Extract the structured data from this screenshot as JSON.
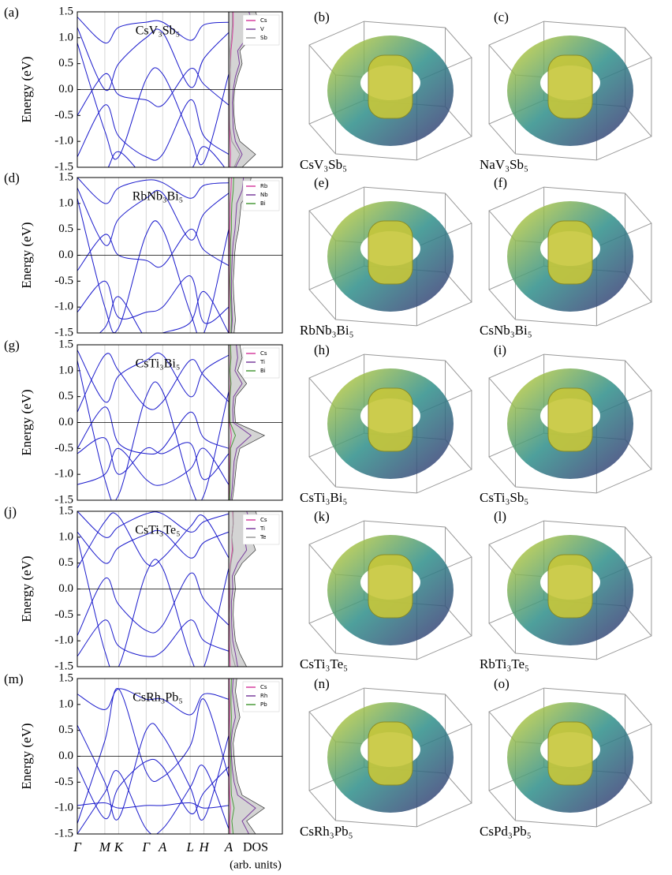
{
  "chart_data": [
    {
      "type": "line",
      "panel": "(a)",
      "compound": "CsV₃Sb₅",
      "y_label": "Energy (eV)",
      "xlim": [
        0,
        5.5
      ],
      "xticks": [
        0,
        1,
        1.5,
        2.5,
        3.1,
        4.1,
        4.6,
        5.5
      ],
      "ylim": [
        -1.5,
        1.5
      ],
      "yticks": [
        -1.5,
        {
          "value": -1.0,
          "label": "-1.0"
        },
        -0.5,
        {
          "value": 0.0,
          "label": "0.0"
        },
        0.5,
        {
          "value": 1.0,
          "label": "1.0"
        },
        1.5
      ],
      "band_color": "#1a1acc",
      "x": [
        0,
        1,
        1.5,
        2.5,
        3.1,
        4.1,
        4.6,
        5.5
      ],
      "bands": [
        [
          -1.3,
          -0.3,
          -0.9,
          -1.3,
          -1.25,
          -0.2,
          -0.9,
          -1.25
        ],
        [
          -0.5,
          0.3,
          -0.1,
          -0.2,
          -0.3,
          0.4,
          0.1,
          -0.3
        ],
        [
          0.9,
          -0.8,
          -1.3,
          0.2,
          0.3,
          -0.9,
          -1.4,
          0.3
        ],
        [
          1.2,
          0.0,
          0.5,
          1.0,
          1.1,
          0.05,
          0.6,
          1.1
        ],
        [
          1.4,
          0.9,
          1.2,
          1.3,
          1.3,
          0.95,
          1.25,
          1.3
        ],
        [
          -2.0,
          -1.6,
          -1.2,
          -1.7,
          -1.6,
          -1.55,
          -1.1,
          -1.6
        ]
      ],
      "energies": [
        -1.5,
        -1.25,
        -1.0,
        -0.75,
        -0.5,
        -0.25,
        0.0,
        0.25,
        0.5,
        0.75,
        1.0,
        1.25,
        1.5
      ],
      "dos_xlim": [
        0,
        12
      ],
      "dos_total": [
        3,
        6,
        2.5,
        1.5,
        1.2,
        1.1,
        1.3,
        2,
        3,
        2.5,
        5,
        7,
        6
      ],
      "legend": "upper right",
      "dos_series": [
        {
          "name": "Cs",
          "color": "#d6409f",
          "values": [
            0.3,
            0.4,
            0.3,
            0.2,
            0.2,
            0.2,
            0.2,
            0.3,
            0.4,
            0.5,
            0.8,
            1,
            1
          ]
        },
        {
          "name": "V",
          "color": "#7b3f9e",
          "values": [
            1.5,
            3,
            1.5,
            1,
            0.9,
            0.8,
            1,
            1.5,
            2.4,
            2,
            4,
            5.5,
            4.5
          ]
        },
        {
          "name": "Sb",
          "color": "#9a9a9a",
          "values": [
            1.2,
            2.5,
            0.7,
            0.3,
            0.2,
            0.2,
            0.2,
            0.3,
            0.4,
            0.3,
            0.6,
            0.8,
            0.8
          ]
        }
      ]
    },
    {
      "type": "line",
      "panel": "(d)",
      "compound": "RbNb₃Bi₅",
      "y_label": "Energy (eV)",
      "xlim": [
        0,
        5.5
      ],
      "xticks": [
        0,
        1,
        1.5,
        2.5,
        3.1,
        4.1,
        4.6,
        5.5
      ],
      "ylim": [
        -1.5,
        1.5
      ],
      "yticks": [
        -1.5,
        {
          "value": -1.0,
          "label": "-1.0"
        },
        -0.5,
        {
          "value": 0.0,
          "label": "0.0"
        },
        0.5,
        {
          "value": 1.0,
          "label": "1.0"
        },
        1.5
      ],
      "band_color": "#1a1acc",
      "x": [
        0,
        1,
        1.5,
        2.5,
        3.1,
        4.1,
        4.6,
        5.5
      ],
      "bands": [
        [
          -1.1,
          -0.5,
          -1.2,
          -1.1,
          -1.0,
          -0.4,
          -1.3,
          -1.0
        ],
        [
          -0.3,
          0.4,
          0.0,
          -0.1,
          -0.2,
          0.5,
          0.1,
          -0.2
        ],
        [
          1.1,
          -1.0,
          -1.4,
          0.4,
          0.5,
          -1.1,
          -1.5,
          0.5
        ],
        [
          1.3,
          0.2,
          0.7,
          1.1,
          1.2,
          0.3,
          0.8,
          1.2
        ],
        [
          1.5,
          1.0,
          1.3,
          1.45,
          1.4,
          1.1,
          1.35,
          1.4
        ],
        [
          -1.8,
          -1.4,
          -0.8,
          -1.6,
          -1.5,
          -1.3,
          -0.7,
          -1.5
        ]
      ],
      "energies": [
        -1.5,
        -1.25,
        -1.0,
        -0.75,
        -0.5,
        -0.25,
        0.0,
        0.25,
        0.5,
        0.75,
        1.0,
        1.25,
        1.5
      ],
      "dos_xlim": [
        0,
        12
      ],
      "dos_total": [
        1.2,
        1.5,
        1.3,
        1.1,
        1,
        1.2,
        1.3,
        1.6,
        2.2,
        2.5,
        2.8,
        4.5,
        5
      ],
      "legend": "upper right",
      "dos_series": [
        {
          "name": "Rb",
          "color": "#d6409f",
          "values": [
            0.1,
            0.1,
            0.1,
            0.1,
            0.1,
            0.1,
            0.1,
            0.2,
            0.2,
            0.3,
            0.3,
            0.5,
            0.6
          ]
        },
        {
          "name": "Nb",
          "color": "#7b3f9e",
          "values": [
            0.6,
            0.8,
            0.7,
            0.6,
            0.6,
            0.7,
            0.8,
            1,
            1.4,
            1.6,
            1.8,
            3,
            3.3
          ]
        },
        {
          "name": "Bi",
          "color": "#4a9a3a",
          "values": [
            0.5,
            0.6,
            0.5,
            0.4,
            0.3,
            0.4,
            0.4,
            0.4,
            0.6,
            0.6,
            0.7,
            1,
            1.1
          ]
        }
      ]
    },
    {
      "type": "line",
      "panel": "(g)",
      "compound": "CsTi₃Bi₅",
      "y_label": "Energy (eV)",
      "xlim": [
        0,
        5.5
      ],
      "xticks": [
        0,
        1,
        1.5,
        2.5,
        3.1,
        4.1,
        4.6,
        5.5
      ],
      "ylim": [
        -1.5,
        1.5
      ],
      "yticks": [
        -1.5,
        {
          "value": -1.0,
          "label": "-1.0"
        },
        -0.5,
        {
          "value": 0.0,
          "label": "0.0"
        },
        0.5,
        {
          "value": 1.0,
          "label": "1.0"
        },
        1.5
      ],
      "band_color": "#1a1acc",
      "x": [
        0,
        1,
        1.5,
        2.5,
        3.1,
        4.1,
        4.6,
        5.5
      ],
      "bands": [
        [
          -0.6,
          -0.3,
          -1.0,
          -0.5,
          -0.6,
          -0.4,
          -1.1,
          -0.6
        ],
        [
          -0.5,
          0.3,
          -0.4,
          -0.6,
          -0.5,
          0.2,
          -0.3,
          -0.5
        ],
        [
          1.2,
          -1.1,
          -1.4,
          0.5,
          0.6,
          -1.2,
          -1.4,
          0.6
        ],
        [
          1.4,
          0.4,
          0.9,
          1.2,
          1.3,
          0.5,
          1.0,
          1.3
        ],
        [
          -1.2,
          -1.0,
          -0.5,
          -1.1,
          -1.2,
          -0.9,
          -0.5,
          -1.2
        ],
        [
          0.2,
          1.3,
          1.0,
          0.3,
          0.4,
          1.2,
          0.9,
          0.4
        ]
      ],
      "energies": [
        -1.5,
        -1.25,
        -1.0,
        -0.75,
        -0.5,
        -0.25,
        0.0,
        0.25,
        0.5,
        0.75,
        1.0,
        1.25,
        1.5
      ],
      "dos_xlim": [
        0,
        12
      ],
      "dos_total": [
        0.8,
        1.2,
        1.5,
        1.8,
        2.5,
        8,
        1.5,
        1.3,
        1.6,
        4,
        2,
        3,
        2.5
      ],
      "legend": "upper right",
      "dos_series": [
        {
          "name": "Cs",
          "color": "#d6409f",
          "values": [
            0.1,
            0.1,
            0.2,
            0.2,
            0.3,
            0.6,
            0.2,
            0.2,
            0.2,
            0.4,
            0.3,
            0.4,
            0.4
          ]
        },
        {
          "name": "Ti",
          "color": "#7b3f9e",
          "values": [
            0.5,
            0.8,
            1,
            1.2,
            1.8,
            5,
            1,
            0.9,
            1.1,
            3,
            1.4,
            2,
            1.7
          ]
        },
        {
          "name": "Bi",
          "color": "#4a9a3a",
          "values": [
            0.2,
            0.3,
            0.3,
            0.4,
            0.4,
            1.5,
            0.3,
            0.2,
            0.3,
            0.5,
            0.3,
            0.5,
            0.4
          ]
        }
      ]
    },
    {
      "type": "line",
      "panel": "(j)",
      "compound": "CsTi₃Te₅",
      "y_label": "Energy (eV)",
      "xlim": [
        0,
        5.5
      ],
      "xticks": [
        0,
        1,
        1.5,
        2.5,
        3.1,
        4.1,
        4.6,
        5.5
      ],
      "ylim": [
        -1.5,
        1.5
      ],
      "yticks": [
        -1.5,
        {
          "value": -1.0,
          "label": "-1.0"
        },
        -0.5,
        {
          "value": 0.0,
          "label": "0.0"
        },
        0.5,
        {
          "value": 1.0,
          "label": "1.0"
        },
        1.5
      ],
      "band_color": "#1a1acc",
      "x": [
        0,
        1,
        1.5,
        2.5,
        3.1,
        4.1,
        4.6,
        5.5
      ],
      "bands": [
        [
          -1.3,
          -0.6,
          -1.1,
          -1.3,
          -1.2,
          -0.6,
          -1.0,
          -1.2
        ],
        [
          -0.9,
          0.2,
          -0.3,
          -0.8,
          -0.7,
          0.3,
          -0.2,
          -0.7
        ],
        [
          1.0,
          -1.2,
          -1.5,
          0.3,
          0.4,
          -1.3,
          -1.5,
          0.4
        ],
        [
          1.1,
          0.5,
          0.8,
          1.05,
          1.1,
          0.6,
          0.9,
          1.1
        ],
        [
          1.5,
          1.0,
          1.2,
          1.45,
          1.45,
          1.1,
          1.3,
          1.45
        ],
        [
          0.4,
          1.3,
          1.4,
          0.5,
          0.6,
          1.2,
          1.4,
          0.6
        ]
      ],
      "energies": [
        -1.5,
        -1.25,
        -1.0,
        -0.75,
        -0.5,
        -0.25,
        0.0,
        0.25,
        0.5,
        0.75,
        1.0,
        1.25,
        1.5
      ],
      "dos_xlim": [
        0,
        12
      ],
      "dos_total": [
        4,
        2.5,
        1.5,
        1.2,
        1,
        1.1,
        1.5,
        1.3,
        3,
        6,
        5,
        7,
        6
      ],
      "legend": "upper right",
      "dos_series": [
        {
          "name": "Cs",
          "color": "#d6409f",
          "values": [
            0.3,
            0.2,
            0.1,
            0.1,
            0.1,
            0.1,
            0.2,
            0.2,
            0.4,
            0.8,
            0.7,
            1,
            0.9
          ]
        },
        {
          "name": "Ti",
          "color": "#7b3f9e",
          "values": [
            2,
            1.5,
            0.9,
            0.7,
            0.6,
            0.6,
            0.9,
            0.8,
            2,
            4,
            3.5,
            5,
            4
          ]
        },
        {
          "name": "Te",
          "color": "#9a9a9a",
          "values": [
            1.5,
            0.7,
            0.4,
            0.3,
            0.2,
            0.3,
            0.3,
            0.2,
            0.5,
            1,
            0.7,
            1,
            1
          ]
        }
      ]
    },
    {
      "type": "line",
      "panel": "(m)",
      "compound": "CsRh₃Pb₅",
      "y_label": "Energy (eV)",
      "xlim": [
        0,
        5.5
      ],
      "xticks": [
        {
          "value": 0,
          "label": "Γ"
        },
        {
          "value": 1,
          "label": "M"
        },
        {
          "value": 1.5,
          "label": "K"
        },
        {
          "value": 2.5,
          "label": "Γ"
        },
        {
          "value": 3.1,
          "label": "A"
        },
        {
          "value": 4.1,
          "label": "L"
        },
        {
          "value": 4.6,
          "label": "H"
        },
        {
          "value": 5.5,
          "label": "A"
        }
      ],
      "ylim": [
        -1.5,
        1.5
      ],
      "yticks": [
        -1.5,
        {
          "value": -1.0,
          "label": "-1.0"
        },
        -0.5,
        {
          "value": 0.0,
          "label": "0.0"
        },
        0.5,
        {
          "value": 1.0,
          "label": "1.0"
        },
        1.5
      ],
      "band_color": "#1a1acc",
      "x": [
        0,
        1,
        1.5,
        2.5,
        3.1,
        4.1,
        4.6,
        5.5
      ],
      "bands": [
        [
          -0.95,
          -0.9,
          -1.0,
          -0.95,
          -0.95,
          -0.9,
          -1.0,
          -0.95
        ],
        [
          -1.3,
          0.3,
          1.3,
          -0.3,
          -0.4,
          0.2,
          1.1,
          -0.4
        ],
        [
          0.6,
          -0.5,
          -1.2,
          0.5,
          0.4,
          -0.6,
          -1.2,
          0.4
        ],
        [
          -0.2,
          -1.2,
          -0.6,
          -0.1,
          -0.2,
          -1.1,
          -0.7,
          -0.2
        ],
        [
          1.2,
          0.9,
          1.3,
          1.1,
          1.1,
          0.8,
          1.2,
          1.1
        ],
        [
          -1.5,
          -0.7,
          -0.3,
          -1.4,
          -1.4,
          -0.6,
          -0.2,
          -1.4
        ]
      ],
      "energies": [
        -1.5,
        -1.25,
        -1.0,
        -0.75,
        -0.5,
        -0.25,
        0.0,
        0.25,
        0.5,
        0.75,
        1.0,
        1.25,
        1.5
      ],
      "dos_xlim": [
        0,
        12
      ],
      "dos_total": [
        6,
        4,
        8,
        3,
        2,
        1.5,
        1.2,
        1,
        1.5,
        2.5,
        2,
        1.5,
        1.8
      ],
      "legend": "upper right",
      "dos_series": [
        {
          "name": "Cs",
          "color": "#d6409f",
          "values": [
            0.3,
            0.2,
            0.4,
            0.2,
            0.1,
            0.1,
            0.1,
            0.1,
            0.1,
            0.2,
            0.2,
            0.1,
            0.1
          ]
        },
        {
          "name": "Rh",
          "color": "#7b3f9e",
          "values": [
            4.5,
            3,
            6,
            2,
            1.2,
            0.8,
            0.6,
            0.5,
            0.8,
            1.5,
            1.2,
            0.8,
            1
          ]
        },
        {
          "name": "Pb",
          "color": "#4a9a3a",
          "values": [
            1,
            0.7,
            1.2,
            0.6,
            0.5,
            0.5,
            0.4,
            0.3,
            0.5,
            0.6,
            0.5,
            0.5,
            0.6
          ]
        }
      ],
      "dos_label": "DOS",
      "dos_unit": "(arb. units)"
    }
  ],
  "fermi_surfaces": [
    {
      "panel": "(b)",
      "caption": "CsV₃Sb₅"
    },
    {
      "panel": "(c)",
      "caption": "NaV₃Sb₅"
    },
    {
      "panel": "(e)",
      "caption": "RbNb₃Bi₅"
    },
    {
      "panel": "(f)",
      "caption": "CsNb₃Bi₅"
    },
    {
      "panel": "(h)",
      "caption": "CsTi₃Bi₅"
    },
    {
      "panel": "(i)",
      "caption": "CsTi₃Sb₅"
    },
    {
      "panel": "(k)",
      "caption": "CsTi₃Te₅"
    },
    {
      "panel": "(l)",
      "caption": "RbTi₃Te₅"
    },
    {
      "panel": "(n)",
      "caption": "CsRh₃Pb₅"
    },
    {
      "panel": "(o)",
      "caption": "CsPd₃Pb₅"
    }
  ]
}
